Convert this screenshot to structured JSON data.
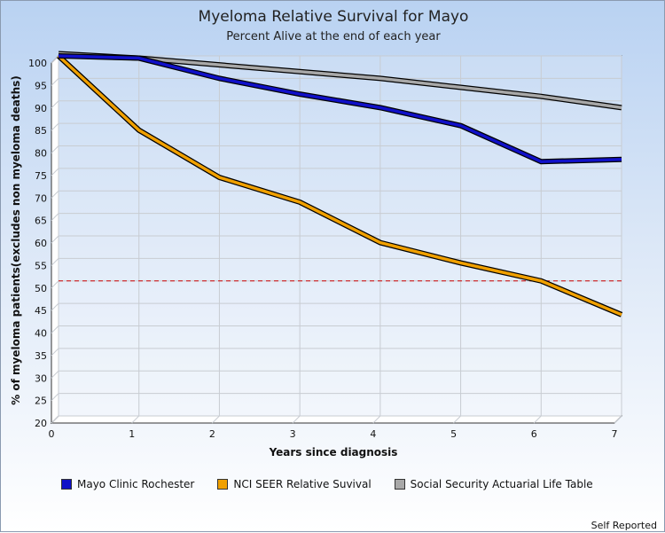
{
  "chart_data": {
    "type": "line",
    "title": "Myeloma Relative Survival for Mayo",
    "subtitle": "Percent Alive at the end of each year",
    "xlabel": "Years since diagnosis",
    "ylabel": "% of myeloma patients(excludes non myeloma deaths)",
    "x": [
      0,
      1,
      2,
      3,
      4,
      5,
      6,
      7
    ],
    "xlim": [
      0,
      7
    ],
    "ylim": [
      20,
      100
    ],
    "yticks": [
      20,
      25,
      30,
      35,
      40,
      45,
      50,
      55,
      60,
      65,
      70,
      75,
      80,
      85,
      90,
      95,
      100
    ],
    "reference_line": {
      "y": 50,
      "color": "#cc0000",
      "style": "dashed"
    },
    "grid": true,
    "legend_position": "bottom",
    "series": [
      {
        "name": "Mayo Clinic Rochester",
        "color": "#1010c8",
        "values": [
          100,
          99.5,
          95,
          91.5,
          88.5,
          84.5,
          76.5,
          77
        ]
      },
      {
        "name": "NCI SEER Relative Suvival",
        "color": "#f0a000",
        "values": [
          100,
          83.5,
          73,
          67.5,
          58.5,
          54,
          50,
          42.5
        ]
      },
      {
        "name": "Social Security Actuarial Life Table",
        "color": "#a8a8a8",
        "values": [
          100.5,
          99.5,
          98,
          96.5,
          95,
          93,
          91,
          88.5
        ]
      }
    ]
  },
  "footer": "Self Reported"
}
